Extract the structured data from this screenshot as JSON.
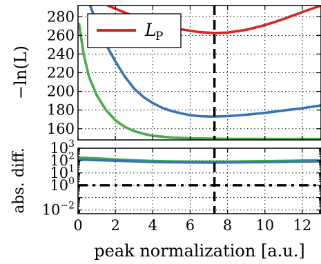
{
  "chart_data": [
    {
      "type": "line",
      "ylabel": "−ln(L)",
      "xlim": [
        0,
        13
      ],
      "ylim": [
        148,
        292
      ],
      "xticks": [
        0,
        2,
        4,
        6,
        8,
        10,
        12
      ],
      "yticks": [
        160,
        180,
        200,
        220,
        240,
        260,
        280
      ],
      "grid": true,
      "legend": {
        "placement": "top-left",
        "entries": [
          {
            "label": "L",
            "subscript": "P",
            "color": "#dd2222"
          }
        ]
      },
      "vline_x": 7.3,
      "series": [
        {
          "color": "#dd2222",
          "x": [
            1.58,
            2.5,
            3.5,
            4.5,
            5.5,
            6.5,
            7.3,
            8.0,
            9.0,
            10.0,
            11.0,
            12.0,
            13.0
          ],
          "values": [
            292,
            284.5,
            277,
            271,
            266.5,
            263.5,
            262.5,
            263,
            266,
            271,
            277.5,
            285,
            292
          ]
        },
        {
          "color": "#3575b5",
          "x": [
            0.65,
            1.0,
            1.5,
            2.0,
            2.5,
            3.0,
            3.5,
            4.0,
            4.5,
            5.0,
            5.5,
            6.0,
            6.5,
            7.0,
            7.3,
            8.0,
            9.0,
            10.0,
            11.0,
            12.0,
            13.0
          ],
          "values": [
            292,
            273,
            250,
            232,
            216,
            203,
            194,
            187.5,
            182.5,
            179,
            176.5,
            174.5,
            173.5,
            173,
            173,
            173.5,
            175,
            177,
            179.5,
            182,
            185
          ]
        },
        {
          "color": "#4aaa48",
          "x": [
            0.05,
            0.3,
            0.6,
            1.0,
            1.5,
            2.0,
            2.5,
            3.0,
            3.5,
            4.0,
            5.0,
            6.0,
            7.0,
            8.0,
            10.0,
            13.0
          ],
          "values": [
            273,
            240,
            215,
            196,
            180,
            169,
            162,
            157.5,
            154.5,
            152.5,
            150.5,
            149.8,
            149.4,
            149.2,
            149.1,
            149
          ]
        }
      ]
    },
    {
      "type": "line",
      "xlabel": "peak normalization [a.u.]",
      "ylabel": "abs. diff.",
      "yscale": "log",
      "xlim": [
        0,
        13
      ],
      "ylim": [
        0.005,
        1000
      ],
      "xticks": [
        0,
        2,
        4,
        6,
        8,
        10,
        12
      ],
      "yticks": [
        0.01,
        1,
        10,
        100,
        1000
      ],
      "ytick_labels": [
        {
          "base": "10",
          "exp": "−2",
          "value": 0.01
        },
        {
          "base": "10",
          "exp": "0",
          "value": 1
        },
        {
          "base": "10",
          "exp": "1",
          "value": 10
        },
        {
          "base": "10",
          "exp": "2",
          "value": 100
        },
        {
          "base": "10",
          "exp": "3",
          "value": 1000
        }
      ],
      "grid": true,
      "vline_x": 7.3,
      "hline_y": 1,
      "series": [
        {
          "color": "#4aaa48",
          "x": [
            0,
            1,
            2,
            3,
            4,
            5,
            6,
            7,
            8,
            9,
            10,
            11,
            12,
            13
          ],
          "values": [
            175,
            150,
            125,
            105,
            92,
            85,
            82,
            81,
            82,
            85,
            89,
            94,
            100,
            107
          ]
        },
        {
          "color": "#3575b5",
          "x": [
            0,
            1,
            2,
            3,
            4,
            5,
            6,
            7,
            8,
            9,
            10,
            11,
            12,
            13
          ],
          "values": [
            120,
            108,
            96,
            86,
            78,
            73,
            70,
            69,
            70,
            72,
            75,
            79,
            83,
            88
          ]
        }
      ]
    }
  ]
}
